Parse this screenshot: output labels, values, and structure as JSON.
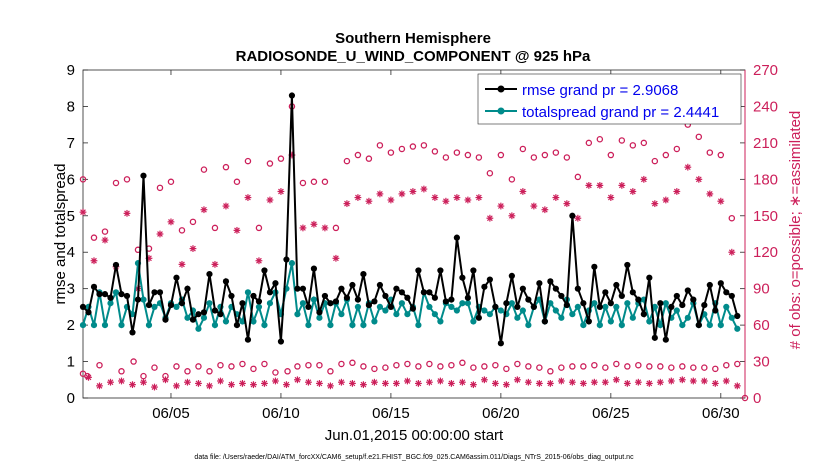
{
  "chart_data": {
    "type": "line",
    "title": "Southern Hemisphere",
    "subtitle": "RADIOSONDE_U_WIND_COMPONENT @ 925 hPa",
    "xlabel": "Jun.01,2015 00:00:00 start",
    "ylabel": "rmse and totalspread",
    "ylabel_right": "# of obs: o=possible; ∗=assimilated",
    "xlim": [
      1.0,
      31.1
    ],
    "ylim": [
      0,
      9
    ],
    "ylim_right": [
      0,
      270
    ],
    "x_tick_values": [
      5,
      10,
      15,
      20,
      25,
      30
    ],
    "x_tick_labels": [
      "06/05",
      "06/10",
      "06/15",
      "06/20",
      "06/25",
      "06/30"
    ],
    "y_ticks": [
      "0",
      "1",
      "2",
      "3",
      "4",
      "5",
      "6",
      "7",
      "8",
      "9"
    ],
    "y_ticks_right": [
      "0",
      "30",
      "60",
      "90",
      "120",
      "150",
      "180",
      "210",
      "240",
      "270"
    ],
    "legend": [
      "rmse grand pr = 2.9068",
      "totalspread grand pr = 2.4441"
    ],
    "legend_position": "top-right",
    "footnote": "data file: /Users/raeder/DAI/ATM_forcXX/CAM6_setup/f.e21.FHIST_BGC.f09_025.CAM6assim.011/Diags_NTrS_2015-06/obs_diag_output.nc",
    "colors": {
      "rmse": "#000000",
      "totalspread": "#008b8b",
      "obs": "#cc1f5a",
      "right_axis": "#cc1f5a"
    },
    "series": [
      {
        "name": "rmse",
        "x": [
          1.0,
          1.25,
          1.5,
          1.75,
          2.0,
          2.25,
          2.5,
          2.75,
          3.0,
          3.25,
          3.5,
          3.75,
          4.0,
          4.25,
          4.5,
          4.75,
          5.0,
          5.25,
          5.5,
          5.75,
          6.0,
          6.25,
          6.5,
          6.75,
          7.0,
          7.25,
          7.5,
          7.75,
          8.0,
          8.25,
          8.5,
          8.75,
          9.0,
          9.25,
          9.5,
          9.75,
          10.0,
          10.25,
          10.5,
          10.75,
          11.0,
          11.25,
          11.5,
          11.75,
          12.0,
          12.25,
          12.5,
          12.75,
          13.0,
          13.25,
          13.5,
          13.75,
          14.0,
          14.25,
          14.5,
          14.75,
          15.0,
          15.25,
          15.5,
          15.75,
          16.0,
          16.25,
          16.5,
          16.75,
          17.0,
          17.25,
          17.5,
          17.75,
          18.0,
          18.25,
          18.5,
          18.75,
          19.0,
          19.25,
          19.5,
          19.75,
          20.0,
          20.25,
          20.5,
          20.75,
          21.0,
          21.25,
          21.5,
          21.75,
          22.0,
          22.25,
          22.5,
          22.75,
          23.0,
          23.25,
          23.5,
          23.75,
          24.0,
          24.25,
          24.5,
          24.75,
          25.0,
          25.25,
          25.5,
          25.75,
          26.0,
          26.25,
          26.5,
          26.75,
          27.0,
          27.25,
          27.5,
          27.75,
          28.0,
          28.25,
          28.5,
          28.75,
          29.0,
          29.25,
          29.5,
          29.75,
          30.0,
          30.25,
          30.5,
          30.75
        ],
        "values": [
          2.5,
          2.35,
          3.05,
          2.85,
          2.85,
          2.75,
          3.65,
          2.85,
          2.8,
          1.8,
          2.7,
          6.1,
          2.55,
          2.9,
          2.9,
          2.15,
          2.55,
          3.3,
          2.6,
          3.0,
          2.15,
          2.3,
          2.35,
          3.4,
          2.4,
          2.3,
          3.2,
          2.8,
          2.0,
          2.6,
          1.6,
          2.8,
          2.65,
          3.5,
          2.9,
          3.15,
          1.55,
          3.8,
          8.3,
          3.0,
          3.0,
          2.5,
          3.55,
          2.35,
          2.8,
          2.6,
          2.65,
          3.0,
          2.75,
          3.1,
          2.7,
          3.4,
          2.55,
          2.65,
          3.1,
          2.8,
          2.5,
          3.0,
          2.9,
          2.75,
          2.45,
          3.5,
          2.9,
          2.9,
          2.75,
          3.5,
          2.65,
          2.7,
          4.4,
          3.3,
          2.75,
          3.5,
          2.2,
          3.05,
          3.25,
          2.5,
          1.5,
          2.6,
          3.35,
          2.5,
          3.0,
          2.7,
          2.5,
          3.15,
          2.1,
          3.2,
          3.0,
          2.8,
          2.55,
          5.0,
          3.0,
          2.6,
          2.1,
          3.6,
          2.5,
          2.9,
          2.6,
          3.1,
          2.8,
          3.65,
          2.9,
          2.7,
          2.3,
          3.3,
          1.65,
          2.6,
          1.6,
          2.5,
          2.8,
          2.55,
          2.95,
          2.7,
          2.0,
          2.55,
          3.1,
          2.4,
          3.15,
          2.9,
          2.8,
          2.25
        ]
      },
      {
        "name": "totalspread",
        "x": [
          1.0,
          1.25,
          1.5,
          1.75,
          2.0,
          2.25,
          2.5,
          2.75,
          3.0,
          3.25,
          3.5,
          3.75,
          4.0,
          4.25,
          4.5,
          4.75,
          5.0,
          5.25,
          5.5,
          5.75,
          6.0,
          6.25,
          6.5,
          6.75,
          7.0,
          7.25,
          7.5,
          7.75,
          8.0,
          8.25,
          8.5,
          8.75,
          9.0,
          9.25,
          9.5,
          9.75,
          10.0,
          10.25,
          10.5,
          10.75,
          11.0,
          11.25,
          11.5,
          11.75,
          12.0,
          12.25,
          12.5,
          12.75,
          13.0,
          13.25,
          13.5,
          13.75,
          14.0,
          14.25,
          14.5,
          14.75,
          15.0,
          15.25,
          15.5,
          15.75,
          16.0,
          16.25,
          16.5,
          16.75,
          17.0,
          17.25,
          17.5,
          17.75,
          18.0,
          18.25,
          18.5,
          18.75,
          19.0,
          19.25,
          19.5,
          19.75,
          20.0,
          20.25,
          20.5,
          20.75,
          21.0,
          21.25,
          21.5,
          21.75,
          22.0,
          22.25,
          22.5,
          22.75,
          23.0,
          23.25,
          23.5,
          23.75,
          24.0,
          24.25,
          24.5,
          24.75,
          25.0,
          25.25,
          25.5,
          25.75,
          26.0,
          26.25,
          26.5,
          26.75,
          27.0,
          27.25,
          27.5,
          27.75,
          28.0,
          28.25,
          28.5,
          28.75,
          29.0,
          29.25,
          29.5,
          29.75,
          30.0,
          30.25,
          30.5,
          30.75
        ],
        "values": [
          2.0,
          2.5,
          2.0,
          2.9,
          2.0,
          2.6,
          2.9,
          2.0,
          2.5,
          2.3,
          3.7,
          2.7,
          2.0,
          2.5,
          2.6,
          2.2,
          2.6,
          2.5,
          2.7,
          2.2,
          2.4,
          1.9,
          2.2,
          2.6,
          2.0,
          2.5,
          2.1,
          2.5,
          2.3,
          2.1,
          2.9,
          2.1,
          2.5,
          2.0,
          2.6,
          2.9,
          2.3,
          3.0,
          3.7,
          2.3,
          2.6,
          2.0,
          2.7,
          2.2,
          2.6,
          2.0,
          2.6,
          2.3,
          2.7,
          2.0,
          2.5,
          2.0,
          2.6,
          2.1,
          2.5,
          2.4,
          2.7,
          2.3,
          2.6,
          2.3,
          2.5,
          2.0,
          2.9,
          2.5,
          2.3,
          2.1,
          2.6,
          2.5,
          2.4,
          2.6,
          2.6,
          2.1,
          2.5,
          2.4,
          2.3,
          2.5,
          2.4,
          2.3,
          2.6,
          2.2,
          2.4,
          2.0,
          2.5,
          2.7,
          2.1,
          2.6,
          2.4,
          2.2,
          2.7,
          2.3,
          2.5,
          2.0,
          2.4,
          2.6,
          2.0,
          2.5,
          2.1,
          2.5,
          2.0,
          2.6,
          2.2,
          2.6,
          2.7,
          2.1,
          2.5,
          2.0,
          2.6,
          2.2,
          2.4,
          2.0,
          2.2,
          2.6,
          2.0,
          2.3,
          2.0,
          2.6,
          2.0,
          2.5,
          2.2,
          1.9
        ]
      }
    ],
    "obs_possible": {
      "x": [
        1.0,
        1.0,
        1.2,
        1.5,
        1.75,
        2.0,
        2.5,
        2.75,
        3.0,
        3.3,
        3.5,
        3.75,
        4.0,
        4.25,
        4.5,
        4.75,
        5.0,
        5.25,
        5.5,
        5.75,
        6.0,
        6.25,
        6.5,
        6.75,
        7.0,
        7.25,
        7.5,
        7.75,
        8.0,
        8.25,
        8.5,
        8.75,
        9.0,
        9.25,
        9.5,
        9.75,
        10.0,
        10.3,
        10.5,
        10.75,
        11.0,
        11.25,
        11.5,
        11.75,
        12.0,
        12.25,
        12.5,
        12.75,
        13.0,
        13.25,
        13.5,
        13.75,
        14.0,
        14.25,
        14.5,
        14.75,
        15.0,
        15.25,
        15.5,
        15.75,
        16.0,
        16.25,
        16.5,
        16.75,
        17.0,
        17.25,
        17.5,
        17.75,
        18.0,
        18.25,
        18.5,
        18.75,
        19.0,
        19.25,
        19.5,
        19.75,
        20.0,
        20.25,
        20.5,
        20.75,
        21.0,
        21.25,
        21.5,
        21.75,
        22.0,
        22.25,
        22.5,
        22.75,
        23.0,
        23.25,
        23.5,
        23.75,
        24.0,
        24.25,
        24.5,
        24.75,
        25.0,
        25.25,
        25.5,
        25.75,
        26.0,
        26.25,
        26.5,
        26.75,
        27.0,
        27.25,
        27.5,
        27.75,
        28.0,
        28.25,
        28.5,
        28.75,
        29.0,
        29.25,
        29.5,
        29.75,
        30.0,
        30.25,
        30.5,
        30.75,
        31.1
      ],
      "values": [
        180,
        20,
        18,
        132,
        27,
        137,
        177,
        22,
        180,
        30,
        122,
        18,
        123,
        25,
        173,
        18,
        178,
        26,
        138,
        22,
        145,
        26,
        188,
        22,
        140,
        27,
        190,
        26,
        178,
        28,
        195,
        24,
        140,
        28,
        193,
        21,
        197,
        22,
        240,
        26,
        177,
        27,
        178,
        27,
        178,
        22,
        140,
        28,
        195,
        29,
        200,
        26,
        197,
        24,
        208,
        25,
        202,
        27,
        205,
        28,
        207,
        26,
        208,
        28,
        203,
        26,
        198,
        27,
        202,
        29,
        200,
        25,
        198,
        26,
        185,
        27,
        200,
        24,
        180,
        28,
        205,
        26,
        198,
        25,
        200,
        22,
        202,
        25,
        198,
        26,
        182,
        26,
        210,
        27,
        213,
        25,
        200,
        28,
        212,
        26,
        208,
        27,
        210,
        26,
        195,
        26,
        200,
        25,
        205,
        26,
        225,
        25,
        215,
        25,
        202,
        24,
        200,
        27,
        148,
        28,
        0
      ]
    },
    "obs_assimilated": {
      "x": [
        1.0,
        1.25,
        1.5,
        1.75,
        2.0,
        2.25,
        2.5,
        2.75,
        3.0,
        3.25,
        3.5,
        3.75,
        4.0,
        4.25,
        4.5,
        4.75,
        5.0,
        5.25,
        5.5,
        5.75,
        6.0,
        6.25,
        6.5,
        6.75,
        7.0,
        7.25,
        7.5,
        7.75,
        8.0,
        8.25,
        8.5,
        8.75,
        9.0,
        9.25,
        9.5,
        9.75,
        10.0,
        10.25,
        10.5,
        10.75,
        11.0,
        11.25,
        11.5,
        11.75,
        12.0,
        12.25,
        12.5,
        12.75,
        13.0,
        13.25,
        13.5,
        13.75,
        14.0,
        14.25,
        14.5,
        14.75,
        15.0,
        15.25,
        15.5,
        15.75,
        16.0,
        16.25,
        16.5,
        16.75,
        17.0,
        17.25,
        17.5,
        17.75,
        18.0,
        18.25,
        18.5,
        18.75,
        19.0,
        19.25,
        19.5,
        19.75,
        20.0,
        20.25,
        20.5,
        20.75,
        21.0,
        21.25,
        21.5,
        21.75,
        22.0,
        22.25,
        22.5,
        22.75,
        23.0,
        23.25,
        23.5,
        23.75,
        24.0,
        24.25,
        24.5,
        24.75,
        25.0,
        25.25,
        25.5,
        25.75,
        26.0,
        26.25,
        26.5,
        26.75,
        27.0,
        27.25,
        27.5,
        27.75,
        28.0,
        28.25,
        28.5,
        28.75,
        29.0,
        29.25,
        29.5,
        29.75,
        30.0,
        30.25,
        30.5,
        30.75
      ],
      "values": [
        153,
        17,
        113,
        10,
        130,
        13,
        108,
        14,
        152,
        11,
        90,
        13,
        115,
        9,
        135,
        15,
        145,
        10,
        110,
        13,
        123,
        12,
        155,
        10,
        110,
        14,
        158,
        11,
        138,
        12,
        165,
        11,
        113,
        12,
        163,
        14,
        170,
        11,
        200,
        15,
        140,
        13,
        143,
        12,
        140,
        10,
        115,
        13,
        160,
        12,
        165,
        11,
        162,
        13,
        168,
        12,
        163,
        12,
        168,
        14,
        170,
        12,
        172,
        13,
        165,
        14,
        162,
        12,
        165,
        13,
        163,
        11,
        165,
        15,
        148,
        12,
        158,
        11,
        150,
        15,
        170,
        13,
        158,
        12,
        155,
        12,
        165,
        14,
        160,
        13,
        148,
        12,
        175,
        13,
        175,
        13,
        165,
        15,
        175,
        12,
        170,
        13,
        180,
        12,
        160,
        13,
        163,
        14,
        170,
        15,
        190,
        14,
        180,
        14,
        168,
        12,
        162,
        14,
        120,
        10
      ]
    }
  }
}
